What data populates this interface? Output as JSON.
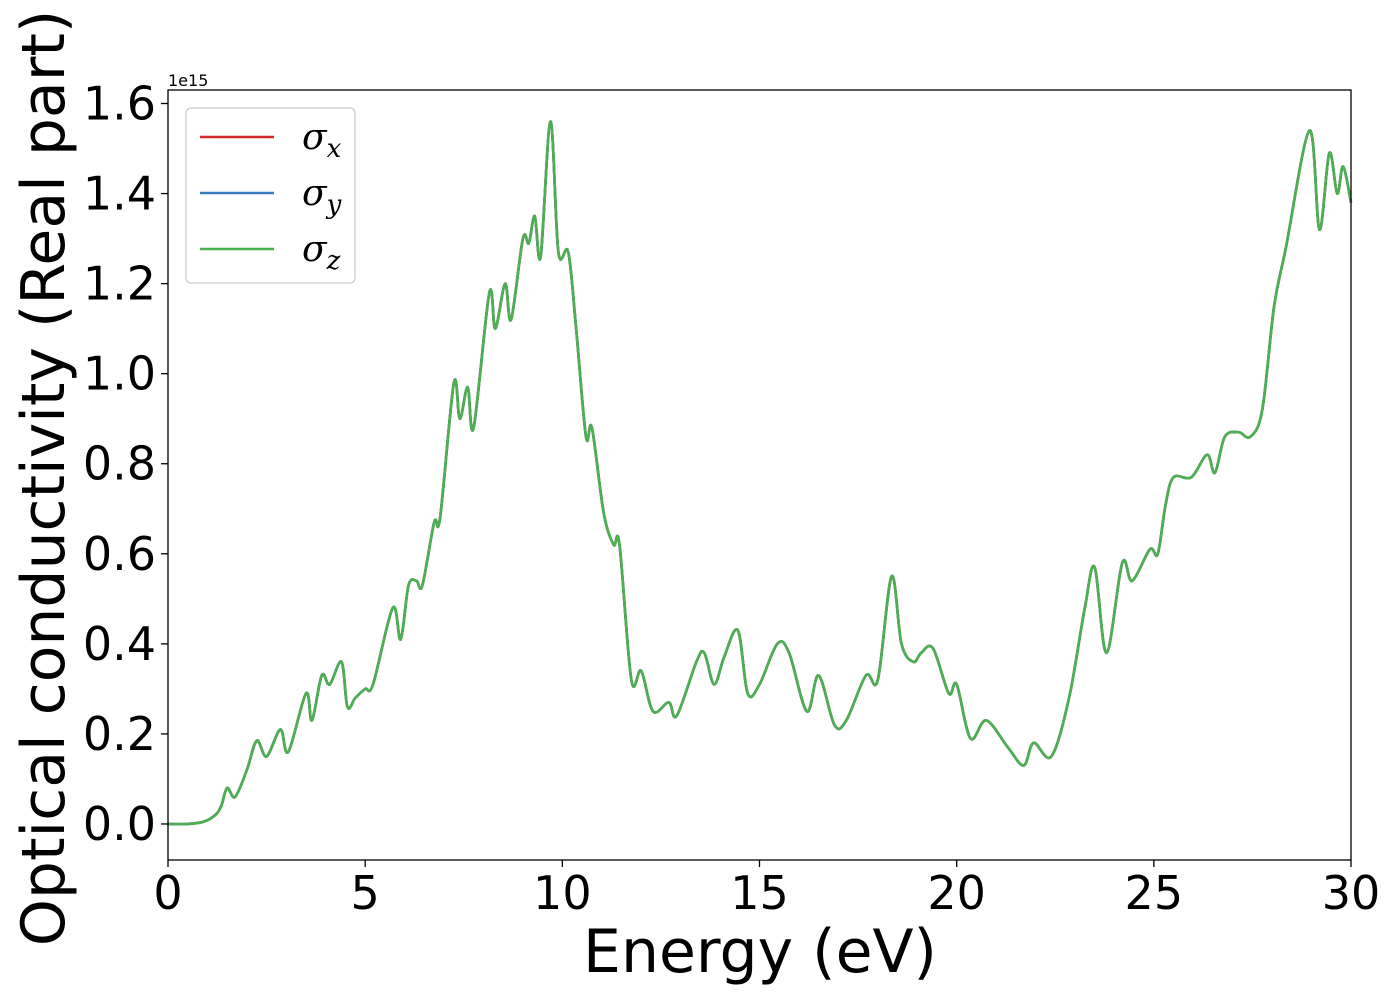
{
  "chart_data": {
    "type": "line",
    "xlabel": "Energy (eV)",
    "ylabel": "Optical conductivity (Real part)",
    "y_offset_label": "1e15",
    "xlim": [
      0,
      30
    ],
    "ylim": [
      -0.08,
      1.63
    ],
    "xticks": [
      0,
      5,
      10,
      15,
      20,
      25,
      30
    ],
    "yticks": [
      0.0,
      0.2,
      0.4,
      0.6,
      0.8,
      1.0,
      1.2,
      1.4,
      1.6
    ],
    "grid": false,
    "legend_placement": "top-left",
    "series": [
      {
        "name": "σx",
        "symbol": "σ",
        "sub": "x",
        "color": "#d62728"
      },
      {
        "name": "σy",
        "symbol": "σ",
        "sub": "y",
        "color": "#3a7dbc"
      },
      {
        "name": "σz",
        "symbol": "σ",
        "sub": "z",
        "color": "#4caf50"
      }
    ],
    "x": [
      0,
      0.5,
      0.9,
      1.2,
      1.35,
      1.5,
      1.7,
      2.0,
      2.25,
      2.5,
      2.85,
      3.05,
      3.5,
      3.65,
      3.9,
      4.1,
      4.4,
      4.55,
      4.75,
      5.0,
      5.2,
      5.7,
      5.9,
      6.1,
      6.3,
      6.45,
      6.75,
      6.9,
      7.25,
      7.4,
      7.6,
      7.75,
      8.15,
      8.3,
      8.55,
      8.7,
      9.0,
      9.15,
      9.3,
      9.45,
      9.7,
      9.9,
      10.15,
      10.35,
      10.6,
      10.75,
      11.05,
      11.3,
      11.45,
      11.75,
      12.0,
      12.3,
      12.7,
      12.9,
      13.4,
      13.6,
      13.85,
      14.1,
      14.45,
      14.7,
      15.0,
      15.45,
      15.75,
      16.2,
      16.5,
      16.9,
      17.2,
      17.7,
      18.0,
      18.35,
      18.6,
      18.9,
      19.1,
      19.4,
      19.8,
      20.0,
      20.35,
      20.75,
      21.3,
      21.7,
      21.95,
      22.4,
      22.85,
      23.25,
      23.5,
      23.8,
      24.2,
      24.45,
      24.9,
      25.1,
      25.3,
      25.5,
      25.95,
      26.35,
      26.55,
      26.8,
      27.15,
      27.45,
      27.75,
      28.05,
      28.35,
      28.95,
      29.2,
      29.45,
      29.65,
      29.8,
      30.0
    ],
    "y_note": "values in units of 1e15",
    "y": [
      0.0,
      0.0,
      0.005,
      0.02,
      0.04,
      0.08,
      0.06,
      0.12,
      0.185,
      0.15,
      0.21,
      0.16,
      0.29,
      0.23,
      0.33,
      0.31,
      0.36,
      0.26,
      0.28,
      0.3,
      0.31,
      0.48,
      0.41,
      0.53,
      0.54,
      0.53,
      0.67,
      0.68,
      0.98,
      0.9,
      0.97,
      0.88,
      1.18,
      1.1,
      1.2,
      1.12,
      1.3,
      1.29,
      1.35,
      1.26,
      1.56,
      1.27,
      1.27,
      1.1,
      0.86,
      0.88,
      0.69,
      0.62,
      0.62,
      0.32,
      0.34,
      0.25,
      0.27,
      0.24,
      0.36,
      0.38,
      0.31,
      0.37,
      0.43,
      0.29,
      0.31,
      0.4,
      0.38,
      0.25,
      0.33,
      0.22,
      0.23,
      0.33,
      0.32,
      0.55,
      0.4,
      0.36,
      0.38,
      0.39,
      0.29,
      0.31,
      0.19,
      0.23,
      0.17,
      0.13,
      0.18,
      0.15,
      0.28,
      0.48,
      0.57,
      0.38,
      0.58,
      0.54,
      0.61,
      0.6,
      0.71,
      0.77,
      0.77,
      0.82,
      0.78,
      0.86,
      0.87,
      0.86,
      0.92,
      1.15,
      1.28,
      1.54,
      1.32,
      1.49,
      1.4,
      1.46,
      1.38
    ]
  }
}
